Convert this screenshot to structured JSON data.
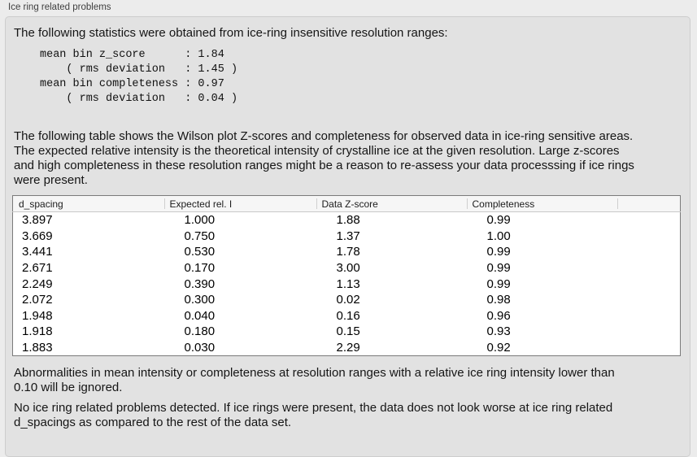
{
  "panel": {
    "title": "Ice ring related problems"
  },
  "intro": {
    "text": "The following statistics were obtained from ice-ring insensitive resolution ranges:"
  },
  "stats_block": "mean bin z_score      : 1.84\n    ( rms deviation   : 1.45 )\nmean bin completeness : 0.97\n    ( rms deviation   : 0.04 )",
  "stats": {
    "mean_bin_z_score": "1.84",
    "z_score_rms_deviation": "1.45",
    "mean_bin_completeness": "0.97",
    "completeness_rms_deviation": "0.04"
  },
  "description": {
    "text": "The following table shows the Wilson plot Z-scores and completeness for observed data in ice-ring sensitive areas.\nThe expected relative intensity is the theoretical intensity of crystalline ice at the given resolution. Large z-scores\nand high completeness in these resolution ranges might be a reason to re-assess your data processsing if ice rings\nwere present."
  },
  "table": {
    "headers": [
      "d_spacing",
      "Expected rel. I",
      "Data Z-score",
      "Completeness",
      ""
    ],
    "rows": [
      [
        "3.897",
        "1.000",
        "1.88",
        "0.99"
      ],
      [
        "3.669",
        "0.750",
        "1.37",
        "1.00"
      ],
      [
        "3.441",
        "0.530",
        "1.78",
        "0.99"
      ],
      [
        "2.671",
        "0.170",
        "3.00",
        "0.99"
      ],
      [
        "2.249",
        "0.390",
        "1.13",
        "0.99"
      ],
      [
        "2.072",
        "0.300",
        "0.02",
        "0.98"
      ],
      [
        "1.948",
        "0.040",
        "0.16",
        "0.96"
      ],
      [
        "1.918",
        "0.180",
        "0.15",
        "0.93"
      ],
      [
        "1.883",
        "0.030",
        "2.29",
        "0.92"
      ]
    ]
  },
  "notes": {
    "ignore_note": "Abnormalities in mean intensity or completeness at resolution ranges with a relative ice ring intensity lower than\n0.10 will be ignored.",
    "conclusion": "No ice ring related problems detected. If ice rings were present, the data does not look worse at ice ring related\nd_spacings as compared to the rest of the data set."
  },
  "colors": {
    "outer_background": "#ececec",
    "panel_background": "#e2e2e2",
    "panel_border": "#cdcdcd",
    "table_background": "#ffffff",
    "table_border": "#7a7a7a",
    "table_header_background": "#f6f6f6",
    "text": "#151515"
  }
}
